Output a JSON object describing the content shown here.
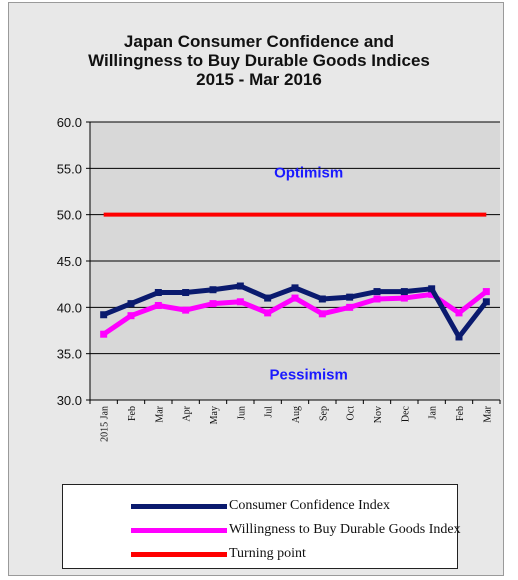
{
  "chart_data": {
    "type": "line",
    "title_lines": [
      "Japan Consumer Confidence and",
      "Willingness to Buy Durable Goods Indices",
      "2015 - Mar  2016"
    ],
    "categories": [
      "2015 Jan",
      "Feb",
      "Mar",
      "Apr",
      "May",
      "Jun",
      "Jul",
      "Aug",
      "Sep",
      "Oct",
      "Nov",
      "Dec",
      "Jan",
      "Feb",
      "Mar"
    ],
    "ylim": [
      30.0,
      60.0
    ],
    "y_ticks": [
      "60.0",
      "55.0",
      "50.0",
      "45.0",
      "40.0",
      "35.0",
      "30.0"
    ],
    "y_tick_values": [
      60,
      55,
      50,
      45,
      40,
      35,
      30
    ],
    "grid": true,
    "series": [
      {
        "name": "Consumer Confidence Index",
        "color": "#0a1a6e",
        "values": [
          39.2,
          40.4,
          41.6,
          41.6,
          41.9,
          42.3,
          41.0,
          42.1,
          40.9,
          41.1,
          41.7,
          41.7,
          42.0,
          36.8,
          40.6
        ]
      },
      {
        "name": "Willingness to Buy Durable Goods Index",
        "color": "#ff00ff",
        "values": [
          37.1,
          39.1,
          40.2,
          39.7,
          40.4,
          40.6,
          39.4,
          41.0,
          39.3,
          40.0,
          40.9,
          41.0,
          41.4,
          39.4,
          41.7
        ]
      },
      {
        "name": "Turning point",
        "color": "#ff0000",
        "values": [
          50,
          50,
          50,
          50,
          50,
          50,
          50,
          50,
          50,
          50,
          50,
          50,
          50,
          50,
          50
        ]
      }
    ],
    "annotations": [
      {
        "text": "Optimism",
        "x_index": 7.5,
        "y": 54.0,
        "color": "#1a1aff"
      },
      {
        "text": "Pessimism",
        "x_index": 7.5,
        "y": 32.2,
        "color": "#1a1aff"
      }
    ],
    "legend_position": "bottom",
    "colors": {
      "plot_background": "#d8d8d8",
      "page_background": "#e8e8e8"
    }
  }
}
